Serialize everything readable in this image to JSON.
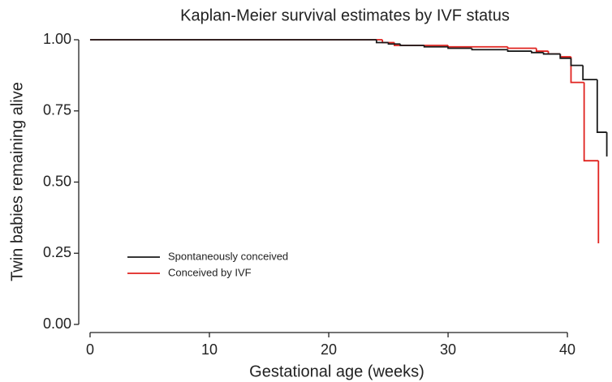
{
  "chart_data": {
    "type": "step",
    "title": "Kaplan-Meier survival estimates by IVF status",
    "x_label": "Gestational age (weeks)",
    "y_label": "Twin babies remaining alive",
    "xlim": [
      -0.95,
      43.6
    ],
    "ylim": [
      0,
      1
    ],
    "xticks": [
      0,
      10,
      20,
      30,
      40
    ],
    "yticks": [
      {
        "value": 0,
        "label": "0.00"
      },
      0.25,
      {
        "value": 0.5,
        "label": "0.50"
      },
      0.75,
      {
        "value": 1,
        "label": "1.00"
      }
    ],
    "grid": false,
    "legend": "lower left",
    "series": [
      {
        "name": "Spontaneously conceived",
        "color": "#1a1a1a",
        "x": [
          0,
          24,
          25,
          26,
          28,
          30,
          32,
          35,
          37,
          38,
          39.4,
          40.3,
          41.3,
          42.5,
          43.3
        ],
        "values": [
          1,
          0.99,
          0.985,
          0.98,
          0.975,
          0.97,
          0.965,
          0.96,
          0.955,
          0.95,
          0.935,
          0.91,
          0.86,
          0.675,
          0.59
        ]
      },
      {
        "name": "Conceived by IVF",
        "color": "#e0231f",
        "x": [
          0,
          24.5,
          25.5,
          30,
          35,
          37.4,
          38.4,
          39.4,
          40.3,
          41.4,
          42.6
        ],
        "values": [
          1,
          0.99,
          0.98,
          0.975,
          0.97,
          0.96,
          0.95,
          0.94,
          0.85,
          0.575,
          0.285
        ]
      }
    ]
  }
}
